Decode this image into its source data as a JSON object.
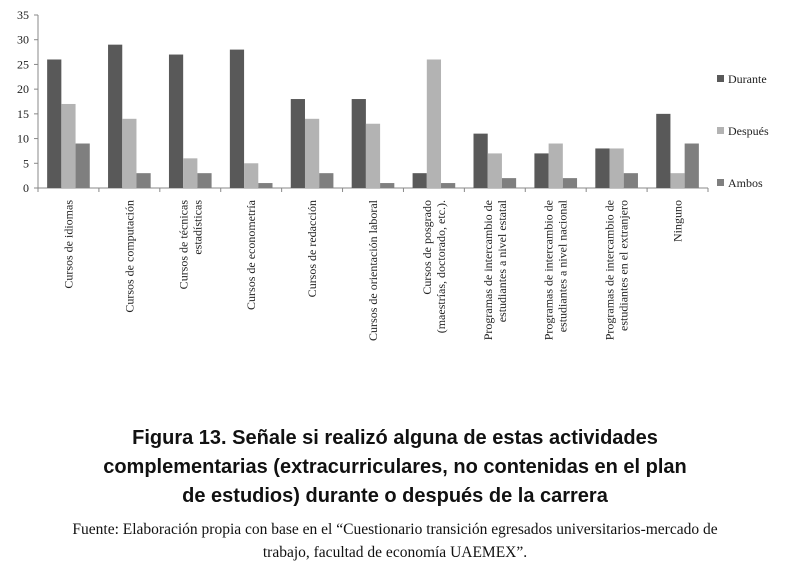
{
  "chart_data": {
    "type": "bar",
    "title": "Figura 13. Señale si realizó alguna de estas actividades complementarias (extracurriculares, no contenidas en el plan de estudios) durante o después de la carrera",
    "source": "Fuente: Elaboración propia con base en el “Cuestionario transición egresados universitarios-mercado de trabajo, facultad de economía UAEMEX”.",
    "categories": [
      "Cursos de idiomas",
      "Cursos de computación",
      "Cursos de técnicas\nestadísticas",
      "Cursos de econometría",
      "Cursos de redacción",
      "Cursos de orientación laboral",
      "Cursos de posgrado\n(maestrías, doctorado, etc.).",
      "Programas de intercambio de\nestudiantes a nivel estatal",
      "Programas de intercambio de\nestudiantes a nivel nacional",
      "Programas de intercambio de\nestudiantes en el extranjero",
      "Ninguno"
    ],
    "series": [
      {
        "name": "Durante",
        "color": "#595959",
        "values": [
          26,
          29,
          27,
          28,
          18,
          18,
          3,
          11,
          7,
          8,
          15
        ]
      },
      {
        "name": "Después",
        "color": "#b3b3b3",
        "values": [
          17,
          14,
          6,
          5,
          14,
          13,
          26,
          7,
          9,
          8,
          3
        ]
      },
      {
        "name": "Ambos",
        "color": "#7f7f7f",
        "values": [
          9,
          3,
          3,
          1,
          3,
          1,
          1,
          2,
          2,
          3,
          9
        ]
      }
    ],
    "ylim": [
      0,
      35
    ],
    "yticks": [
      0,
      5,
      10,
      15,
      20,
      25,
      30,
      35
    ],
    "grid": false,
    "legend": "right"
  }
}
